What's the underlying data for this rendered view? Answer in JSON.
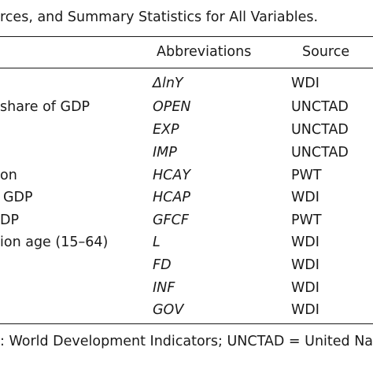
{
  "caption": "rces, and Summary Statistics for All Variables.",
  "headers": {
    "abbreviations": "Abbreviations",
    "source": "Source"
  },
  "rows": [
    {
      "variable": "",
      "abbreviation": "ΔlnY",
      "source": "WDI"
    },
    {
      "variable": "share of GDP",
      "abbreviation": "OPEN",
      "source": "UNCTAD"
    },
    {
      "variable": "",
      "abbreviation": "EXP",
      "source": "UNCTAD"
    },
    {
      "variable": "",
      "abbreviation": "IMP",
      "source": "UNCTAD"
    },
    {
      "variable": "on",
      "abbreviation": "HCAY",
      "source": "PWT"
    },
    {
      "variable": "GDP",
      "abbreviation": "HCAP",
      "source": "WDI"
    },
    {
      "variable": "DP",
      "abbreviation": "GFCF",
      "source": "PWT"
    },
    {
      "variable": "ion age (15–64)",
      "abbreviation": "L",
      "source": "WDI"
    },
    {
      "variable": "",
      "abbreviation": "FD",
      "source": "WDI"
    },
    {
      "variable": "",
      "abbreviation": "INF",
      "source": "WDI"
    },
    {
      "variable": "",
      "abbreviation": "GOV",
      "source": "WDI"
    }
  ],
  "note": ": World Development Indicators; UNCTAD = United Natio"
}
